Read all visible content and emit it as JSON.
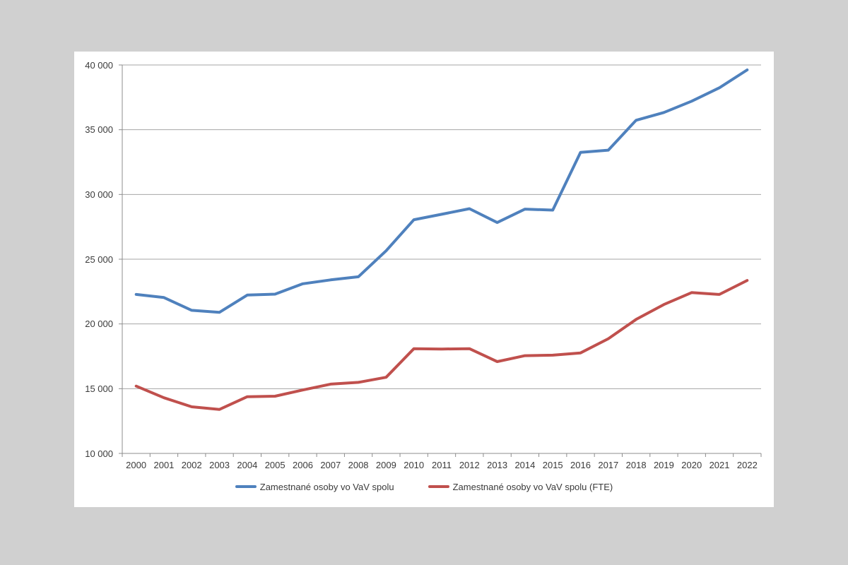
{
  "page": {
    "background_color": "#d0d0d0",
    "card_color": "#ffffff"
  },
  "chart_data": {
    "type": "line",
    "title": "",
    "xlabel": "",
    "ylabel": "",
    "grid": true,
    "legend_position": "bottom",
    "axis_color": "#8c8c8c",
    "gridline_color": "#a6a6a6",
    "text_color": "#3a3a3a",
    "x": [
      "2000",
      "2001",
      "2002",
      "2003",
      "2004",
      "2005",
      "2006",
      "2007",
      "2008",
      "2009",
      "2010",
      "2011",
      "2012",
      "2013",
      "2014",
      "2015",
      "2016",
      "2017",
      "2018",
      "2019",
      "2020",
      "2021",
      "2022"
    ],
    "series": [
      {
        "name": "Zamestnané osoby vo VaV spolu",
        "color": "#4F81BD",
        "values": [
          22280,
          22040,
          21050,
          20900,
          22230,
          22300,
          23100,
          23400,
          23640,
          25650,
          28050,
          28470,
          28900,
          27830,
          28870,
          28790,
          33250,
          33420,
          35730,
          36330,
          37200,
          38240,
          39620
        ]
      },
      {
        "name": "Zamestnané osoby vo VaV spolu (FTE)",
        "color": "#C0504D",
        "values": [
          15200,
          14300,
          13600,
          13400,
          14380,
          14420,
          14900,
          15350,
          15490,
          15880,
          18090,
          18060,
          18090,
          17090,
          17550,
          17590,
          17760,
          18860,
          20350,
          21500,
          22420,
          22280,
          23360
        ]
      }
    ],
    "y_axis": {
      "min": 10000,
      "max": 40000,
      "step": 5000,
      "tick_values": [
        10000,
        15000,
        20000,
        25000,
        30000,
        35000,
        40000
      ],
      "tick_labels": [
        "10 000",
        "15 000",
        "20 000",
        "25 000",
        "30 000",
        "35 000",
        "40 000"
      ]
    }
  }
}
